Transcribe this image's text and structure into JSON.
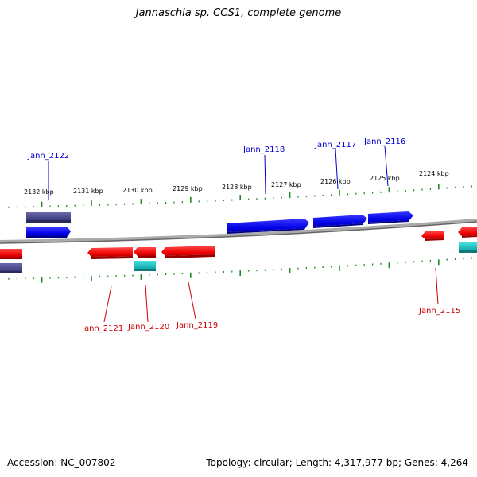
{
  "title": "Jannaschia sp. CCS1, complete genome",
  "footer": {
    "accession": "Accession: NC_007802",
    "topology": "Topology: circular; Length: 4,317,977 bp; Genes: 4,264"
  },
  "colors": {
    "forward_gene": "#0000ee",
    "reverse_gene": "#ee0000",
    "forward_label": "#0000cc",
    "reverse_label": "#cc0000",
    "navy_feature": "#4a4a8a",
    "cyan_feature": "#22cccc",
    "backbone": "#888888",
    "tick": "#228822"
  },
  "scale_labels": [
    "2132 kbp",
    "2131 kbp",
    "2130 kbp",
    "2129 kbp",
    "2128 kbp",
    "2127 kbp",
    "2126 kbp",
    "2125 kbp",
    "2124 kbp"
  ],
  "gene_labels": {
    "forward": [
      "Jann_2122",
      "Jann_2118",
      "Jann_2117",
      "Jann_2116"
    ],
    "reverse": [
      "Jann_2121",
      "Jann_2120",
      "Jann_2119",
      "Jann_2115"
    ]
  }
}
